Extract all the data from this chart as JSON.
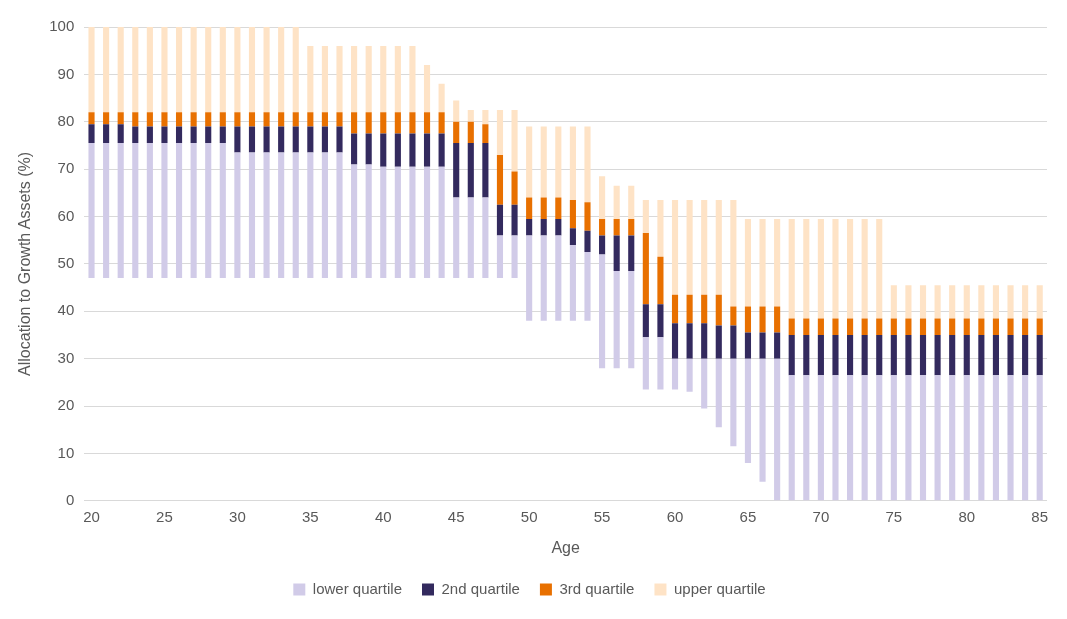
{
  "chart_data": {
    "type": "bar",
    "stacked": true,
    "xlabel": "Age",
    "ylabel": "Allocation to Growth Assets (%)",
    "categories": [
      "20",
      null,
      null,
      null,
      null,
      "25",
      null,
      null,
      null,
      null,
      "30",
      null,
      null,
      null,
      null,
      "35",
      null,
      null,
      null,
      null,
      "40",
      null,
      null,
      null,
      null,
      "45",
      null,
      null,
      null,
      null,
      "50",
      null,
      null,
      null,
      null,
      "55",
      null,
      null,
      null,
      null,
      "60",
      null,
      null,
      null,
      null,
      "65",
      null,
      null,
      null,
      null,
      "70",
      null,
      null,
      null,
      null,
      "75",
      null,
      null,
      null,
      null,
      "80",
      null,
      null,
      null,
      null,
      "85"
    ],
    "series": [
      {
        "name": "lower quartile",
        "color": "#d1cbe8",
        "base": [
          47,
          47,
          47,
          47,
          47,
          47,
          47,
          47,
          47,
          47,
          47,
          47,
          47,
          47,
          47,
          47,
          47,
          47,
          47,
          47,
          47,
          47,
          47,
          47,
          47,
          47,
          47,
          47,
          47,
          47,
          38,
          38,
          38,
          38,
          38,
          28,
          28,
          28,
          23.5,
          23.5,
          23.5,
          23,
          19.5,
          15.5,
          11.5,
          8,
          4,
          0,
          0,
          0,
          0,
          0,
          0,
          0,
          0,
          0,
          0,
          0,
          0,
          0,
          0,
          0,
          0,
          0,
          0,
          0
        ],
        "values": [
          28.5,
          28.5,
          28.5,
          28.5,
          28.5,
          28.5,
          28.5,
          28.5,
          28.5,
          28.5,
          26.5,
          26.5,
          26.5,
          26.5,
          26.5,
          26.5,
          26.5,
          26.5,
          24,
          24,
          23.5,
          23.5,
          23.5,
          23.5,
          23.5,
          17,
          17,
          17,
          9,
          9,
          18,
          18,
          18,
          16,
          14.5,
          24,
          20.5,
          20.5,
          11,
          11,
          6.5,
          7,
          10.5,
          14.5,
          18.5,
          22,
          26,
          30,
          26.5,
          26.5,
          26.5,
          26.5,
          26.5,
          26.5,
          26.5,
          26.5,
          26.5,
          26.5,
          26.5,
          26.5,
          26.5,
          26.5,
          26.5,
          26.5,
          26.5,
          26.5
        ]
      },
      {
        "name": "2nd quartile",
        "color": "#332a5e",
        "values": [
          4,
          4,
          4,
          3.5,
          3.5,
          3.5,
          3.5,
          3.5,
          3.5,
          3.5,
          5.5,
          5.5,
          5.5,
          5.5,
          5.5,
          5.5,
          5.5,
          5.5,
          6.5,
          6.5,
          7,
          7,
          7,
          7,
          7,
          11.5,
          11.5,
          11.5,
          6.5,
          6.5,
          3.5,
          3.5,
          3.5,
          3.5,
          4.5,
          4,
          7.5,
          7.5,
          7,
          7,
          7.5,
          7.5,
          7.5,
          7,
          7,
          5.5,
          5.5,
          5.5,
          8.5,
          8.5,
          8.5,
          8.5,
          8.5,
          8.5,
          8.5,
          8.5,
          8.5,
          8.5,
          8.5,
          8.5,
          8.5,
          8.5,
          8.5,
          8.5,
          8.5,
          8.5
        ]
      },
      {
        "name": "3rd quartile",
        "color": "#e87000",
        "values": [
          2.5,
          2.5,
          2.5,
          3,
          3,
          3,
          3,
          3,
          3,
          3,
          3,
          3,
          3,
          3,
          3,
          3,
          3,
          3,
          4.5,
          4.5,
          4.5,
          4.5,
          4.5,
          4.5,
          4.5,
          4.5,
          4.5,
          4,
          10.5,
          7,
          4.5,
          4.5,
          4.5,
          6,
          6,
          3.5,
          3.5,
          3.5,
          15,
          10,
          6,
          6,
          6,
          6.5,
          4,
          5.5,
          5.5,
          5.5,
          3.5,
          3.5,
          3.5,
          3.5,
          3.5,
          3.5,
          3.5,
          3.5,
          3.5,
          3.5,
          3.5,
          3.5,
          3.5,
          3.5,
          3.5,
          3.5,
          3.5,
          3.5
        ]
      },
      {
        "name": "upper quartile",
        "color": "#fee3c6",
        "values": [
          18,
          18,
          18,
          18,
          18,
          18,
          18,
          18,
          18,
          18,
          18,
          18,
          18,
          18,
          18,
          14,
          14,
          14,
          14,
          14,
          14,
          14,
          14,
          10,
          6,
          4.5,
          2.5,
          3,
          9.5,
          13,
          15,
          15,
          15,
          15.5,
          16,
          9,
          7,
          7,
          7,
          12,
          20,
          20,
          20,
          20,
          22.5,
          18.5,
          18.5,
          18.5,
          21,
          21,
          21,
          21,
          21,
          21,
          21,
          7,
          7,
          7,
          7,
          7,
          7,
          7,
          7,
          7,
          7,
          7
        ]
      }
    ],
    "ylim": [
      0,
      100
    ],
    "yticks": [
      0,
      10,
      20,
      30,
      40,
      50,
      60,
      70,
      80,
      90,
      100
    ],
    "grid": "y",
    "legend": "bottom"
  }
}
